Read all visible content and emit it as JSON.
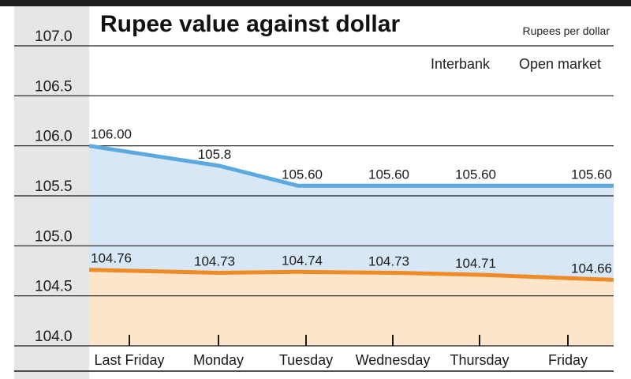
{
  "chart_data": {
    "type": "line",
    "title": "Rupee value against dollar",
    "units": "Rupees per dollar",
    "categories": [
      "Last Friday",
      "Monday",
      "Tuesday",
      "Wednesday",
      "Thursday",
      "Friday"
    ],
    "yticks": [
      "107.0",
      "106.5",
      "106.0",
      "105.5",
      "105.0",
      "104.5",
      "104.0"
    ],
    "ylim": [
      104.0,
      107.0
    ],
    "grid": true,
    "legend": [
      "Interbank",
      "Open market"
    ],
    "series": [
      {
        "name": "Open market",
        "values": [
          106.0,
          105.8,
          105.6,
          105.6,
          105.6,
          105.6
        ],
        "labels": [
          "106.00",
          "105.8",
          "105.60",
          "105.60",
          "105.60",
          "105.60"
        ],
        "color": "#5aa9e0",
        "fill": "#d8e7f6"
      },
      {
        "name": "Interbank",
        "values": [
          104.76,
          104.73,
          104.74,
          104.73,
          104.71,
          104.66
        ],
        "labels": [
          "104.76",
          "104.73",
          "104.74",
          "104.73",
          "104.71",
          "104.66"
        ],
        "color": "#f08a24",
        "fill": "#fde5cc"
      }
    ]
  }
}
